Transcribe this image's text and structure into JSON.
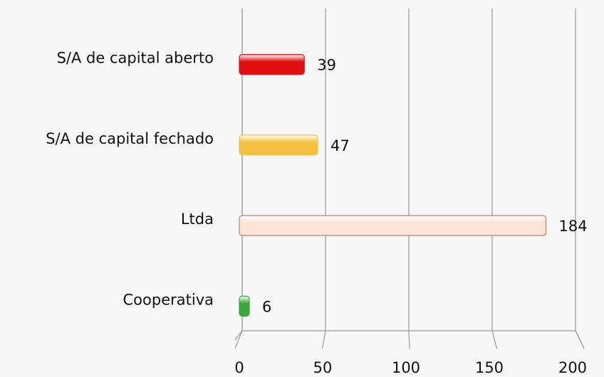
{
  "chart_data": {
    "type": "bar",
    "orientation": "horizontal",
    "categories": [
      "S/A de capital aberto",
      "S/A de capital fechado",
      "Ltda",
      "Cooperativa"
    ],
    "values": [
      39,
      47,
      184,
      6
    ],
    "colors": [
      "#e01010",
      "#f4c040",
      "#fbe3d6",
      "#3aa83a"
    ],
    "xlim": [
      0,
      200
    ],
    "xticks": [
      0,
      50,
      100,
      150,
      200
    ],
    "grid": true
  }
}
